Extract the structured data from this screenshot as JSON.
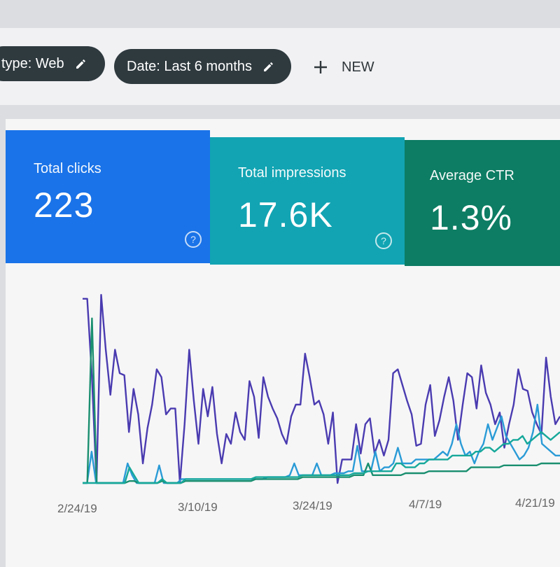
{
  "filters": {
    "search_type_label": "type: Web",
    "date_label": "Date: Last 6 months",
    "new_label": "NEW"
  },
  "metrics": [
    {
      "label": "Total clicks",
      "value": "223",
      "color": "#1a73e8"
    },
    {
      "label": "Total impressions",
      "value": "17.6K",
      "color": "#12a4b3"
    },
    {
      "label": "Average CTR",
      "value": "1.3%",
      "color": "#0d7d63"
    }
  ],
  "icons": {
    "edit": "pencil-icon",
    "add": "plus-icon",
    "help": "help-circle-icon"
  },
  "chart_data": {
    "type": "line",
    "x_tick_labels": [
      "2/24/19",
      "3/10/19",
      "3/24/19",
      "4/7/19",
      "4/21/19"
    ],
    "y_range": [
      0,
      100
    ],
    "grid": false,
    "series": [
      {
        "color": "#4a3bb0",
        "values": [
          94,
          94,
          55,
          0,
          96,
          68,
          45,
          68,
          56,
          55,
          26,
          48,
          35,
          10,
          28,
          40,
          58,
          54,
          35,
          38,
          38,
          0,
          30,
          68,
          42,
          20,
          48,
          34,
          49,
          25,
          10,
          25,
          20,
          36,
          26,
          22,
          52,
          44,
          23,
          54,
          44,
          38,
          33,
          25,
          20,
          34,
          40,
          40,
          66,
          54,
          40,
          42,
          35,
          20,
          36,
          0,
          12,
          12,
          12,
          30,
          15,
          30,
          33,
          15,
          22,
          14,
          22,
          56,
          58,
          50,
          42,
          35,
          19,
          20,
          40,
          50,
          24,
          32,
          44,
          54,
          42,
          22,
          40,
          56,
          54,
          38,
          60,
          46,
          40,
          30,
          36,
          18,
          30,
          40,
          58,
          48,
          47,
          36,
          30,
          25,
          64,
          44,
          30,
          34
        ]
      },
      {
        "color": "#2a9bd6",
        "values": [
          0,
          0,
          16,
          0,
          0,
          0,
          0,
          0,
          0,
          0,
          10,
          4,
          0,
          0,
          0,
          0,
          0,
          9,
          0,
          0,
          0,
          0,
          2,
          2,
          2,
          2,
          2,
          2,
          2,
          2,
          2,
          2,
          2,
          2,
          2,
          2,
          2,
          2,
          2,
          2,
          2,
          3,
          3,
          3,
          3,
          3,
          4,
          10,
          4,
          4,
          4,
          4,
          10,
          4,
          4,
          4,
          5,
          5,
          5,
          6,
          6,
          19,
          6,
          6,
          6,
          16,
          6,
          8,
          8,
          10,
          18,
          10,
          10,
          10,
          12,
          12,
          12,
          12,
          12,
          14,
          16,
          14,
          20,
          30,
          20,
          14,
          16,
          10,
          16,
          20,
          30,
          22,
          28,
          34,
          24,
          20,
          16,
          12,
          14,
          18,
          26,
          40,
          20,
          18,
          16,
          14,
          14
        ]
      },
      {
        "color": "#1a8f6f",
        "values": [
          0,
          0,
          84,
          0,
          0,
          0,
          0,
          0,
          0,
          0,
          1,
          1,
          0,
          0,
          0,
          0,
          0,
          1,
          0,
          0,
          0,
          0,
          1,
          1,
          1,
          1,
          1,
          1,
          1,
          1,
          1,
          1,
          1,
          1,
          1,
          1,
          1,
          2,
          2,
          2,
          2,
          2,
          2,
          2,
          2,
          2,
          2,
          3,
          3,
          3,
          3,
          3,
          3,
          3,
          3,
          3,
          3,
          3,
          4,
          4,
          4,
          10,
          4,
          4,
          4,
          4,
          4,
          4,
          4,
          5,
          5,
          5,
          5,
          5,
          6,
          6,
          6,
          6,
          6,
          6,
          6,
          6,
          6,
          8,
          8,
          8,
          8,
          8,
          8,
          8,
          9,
          9,
          9,
          9,
          9,
          9,
          9,
          9,
          10,
          10,
          10,
          10,
          10
        ]
      },
      {
        "color": "#16a89a",
        "values": [
          0,
          0,
          0,
          0,
          0,
          0,
          0,
          0,
          0,
          0,
          8,
          4,
          0,
          0,
          0,
          0,
          0,
          2,
          0,
          0,
          0,
          0,
          2,
          2,
          2,
          2,
          2,
          2,
          2,
          2,
          2,
          2,
          2,
          2,
          2,
          2,
          2,
          3,
          3,
          3,
          3,
          3,
          3,
          3,
          3,
          3,
          3,
          4,
          4,
          4,
          4,
          4,
          4,
          4,
          4,
          4,
          4,
          4,
          5,
          5,
          5,
          6,
          6,
          6,
          6,
          6,
          6,
          10,
          10,
          8,
          8,
          8,
          10,
          10,
          12,
          12,
          12,
          12,
          12,
          14,
          14,
          14,
          14,
          14,
          16,
          16,
          18,
          18,
          16,
          18,
          20,
          20,
          22,
          22,
          24,
          20,
          22,
          24,
          26,
          24,
          22,
          24,
          26
        ]
      }
    ]
  }
}
